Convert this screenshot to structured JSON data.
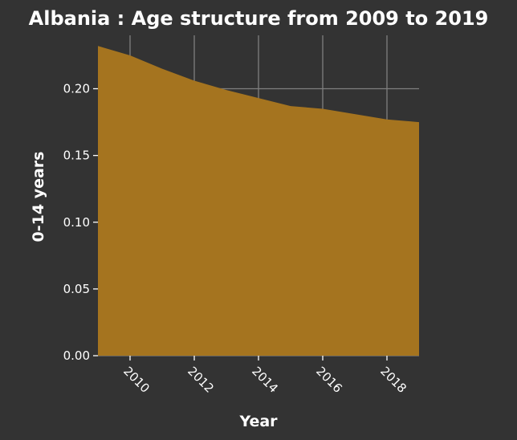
{
  "chart_data": {
    "type": "area",
    "title": "Albania : Age structure from 2009 to 2019",
    "xlabel": "Year",
    "ylabel": "0-14 years",
    "x": [
      2009,
      2010,
      2011,
      2012,
      2013,
      2014,
      2015,
      2016,
      2017,
      2018,
      2019
    ],
    "series": [
      {
        "values": [
          0.232,
          0.225,
          0.215,
          0.206,
          0.199,
          0.193,
          0.187,
          0.185,
          0.181,
          0.177,
          0.175
        ]
      }
    ],
    "xlim": [
      2009,
      2019
    ],
    "ylim": [
      0,
      0.24
    ],
    "xticks": [
      2010,
      2012,
      2014,
      2016,
      2018
    ],
    "yticks": [
      0.0,
      0.05,
      0.1,
      0.15,
      0.2
    ],
    "xtick_labels": [
      "2010",
      "2012",
      "2014",
      "2016",
      "2018"
    ],
    "ytick_labels": [
      "0.00",
      "0.05",
      "0.10",
      "0.15",
      "0.20"
    ],
    "grid": true,
    "colors": {
      "fill": "#a5741f",
      "background": "#333333",
      "grid": "#7f7f7f",
      "text": "#ffffff"
    }
  }
}
